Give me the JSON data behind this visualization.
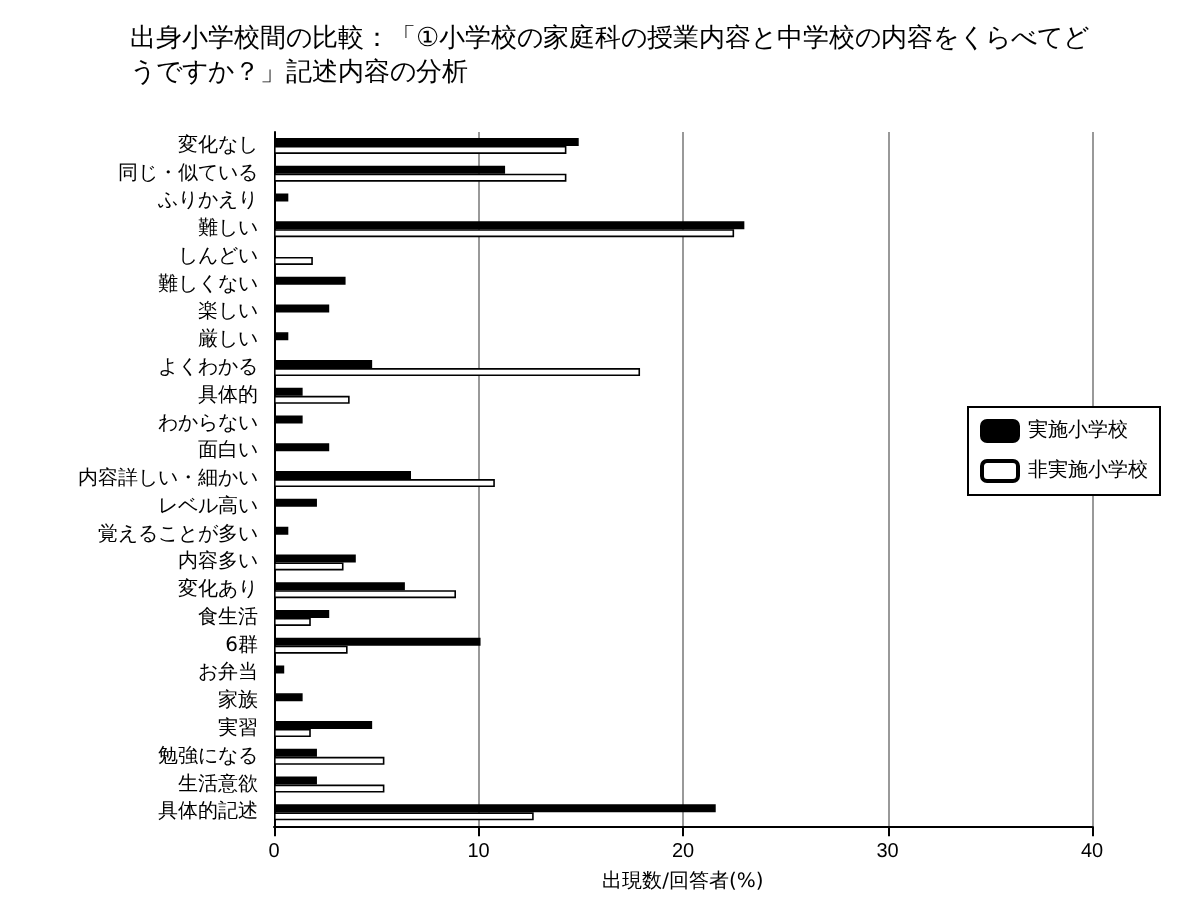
{
  "chart_data": {
    "type": "bar",
    "orientation": "horizontal",
    "title": "出身小学校間の比較：「①小学校の家庭科の授業内容と中学校の内容をくらべてどうですか？」記述内容の分析",
    "xlabel": "出現数/回答者(%)",
    "categories": [
      "変化なし",
      "同じ・似ている",
      "ふりかえり",
      "難しい",
      "しんどい",
      "難しくない",
      "楽しい",
      "厳しい",
      "よくわかる",
      "具体的",
      "わからない",
      "面白い",
      "内容詳しい・細かい",
      "レベル高い",
      "覚えることが多い",
      "内容多い",
      "変化あり",
      "食生活",
      "6群",
      "お弁当",
      "家族",
      "実習",
      "勉強になる",
      "生活意欲",
      "具体的記述"
    ],
    "series": [
      {
        "name": "実施小学校",
        "color": "#000000",
        "values": [
          14.9,
          11.3,
          0.7,
          23.0,
          0,
          3.5,
          2.7,
          0.7,
          4.8,
          1.4,
          1.4,
          2.7,
          6.7,
          2.1,
          0.7,
          4.0,
          6.4,
          2.7,
          10.1,
          0.5,
          1.4,
          4.8,
          2.1,
          2.1,
          21.6
        ]
      },
      {
        "name": "非実施小学校",
        "color": "#ffffff",
        "values": [
          14.3,
          14.3,
          0,
          22.5,
          1.9,
          0,
          0,
          0,
          17.9,
          3.7,
          0,
          0,
          10.8,
          0,
          0,
          3.4,
          8.9,
          1.8,
          3.6,
          0,
          0,
          1.8,
          5.4,
          5.4,
          12.7
        ]
      }
    ],
    "xlim": [
      0,
      40
    ],
    "xticks": [
      0,
      10,
      20,
      30,
      40
    ],
    "grid": "x",
    "legend": "right"
  }
}
